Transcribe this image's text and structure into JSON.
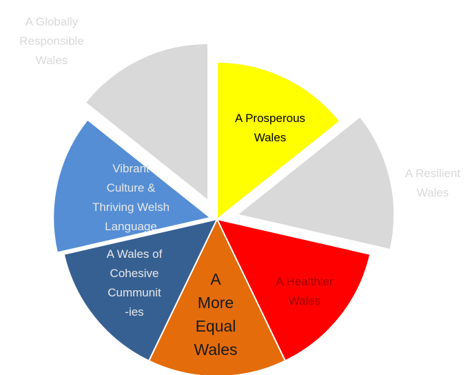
{
  "chart_data": {
    "type": "pie",
    "categories": [
      "A Prosperous\nWales",
      "A Resilient\nWales",
      "A Healthier\nWales",
      "A\nMore\nEqual\nWales",
      "A Wales of\nCohesive\nCummunit\n-ies",
      "Vibrant\nCulture &\nThriving Welsh\nLanguage",
      "A Globally\nResponsible\nWales"
    ],
    "values": [
      1,
      1,
      1,
      1,
      1,
      1,
      1
    ],
    "colors": [
      "#ffff00",
      "#d9d9d9",
      "#ff0000",
      "#e46c0a",
      "#376092",
      "#558ed5",
      "#d9d9d9"
    ],
    "label_colors": [
      "#000000",
      "#d9d9d9",
      "#a00000",
      "#1a1a1a",
      "#e8e8e8",
      "#e8e8e8",
      "#d9d9d9"
    ]
  }
}
